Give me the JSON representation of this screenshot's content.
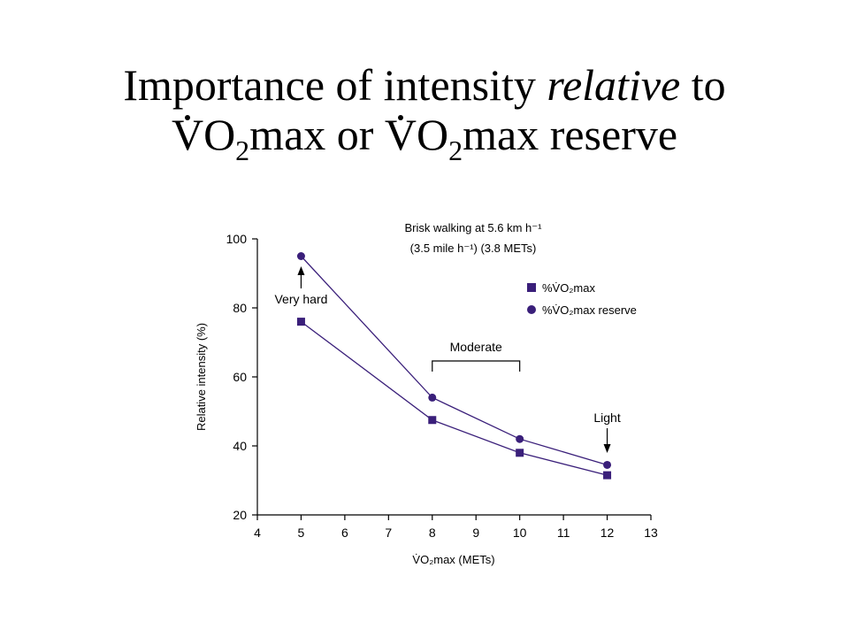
{
  "title": {
    "line1_pre": "Importance of intensity ",
    "line1_em": "relative",
    "line1_post": " to",
    "line2_v1": "V",
    "line2_o1": "O",
    "line2_sub1": "2",
    "line2_mid": "max or ",
    "line2_v2": "V",
    "line2_o2": "O",
    "line2_sub2": "2",
    "line2_end": "max reserve"
  },
  "chart_data": {
    "type": "line",
    "categories": [
      "4",
      "5",
      "6",
      "7",
      "8",
      "9",
      "10",
      "11",
      "12",
      "13"
    ],
    "series": [
      {
        "name": "%V̇O₂max",
        "marker": "square",
        "points": [
          {
            "cat": "5",
            "y": 76
          },
          {
            "cat": "8",
            "y": 47.5
          },
          {
            "cat": "10",
            "y": 38
          },
          {
            "cat": "12",
            "y": 31.5
          }
        ]
      },
      {
        "name": "%V̇O₂max reserve",
        "marker": "circle",
        "points": [
          {
            "cat": "5",
            "y": 95
          },
          {
            "cat": "8",
            "y": 54
          },
          {
            "cat": "10",
            "y": 42
          },
          {
            "cat": "12",
            "y": 34.5
          }
        ]
      }
    ],
    "ylim": [
      20,
      100
    ],
    "yticks": [
      20,
      40,
      60,
      80,
      100
    ],
    "xlabel": "V̇O₂max (METs)",
    "ylabel": "Relative intensity (%)",
    "annotation_lines": [
      "Brisk walking at 5.6 km h⁻¹",
      "(3.5 mile h⁻¹) (3.8 METs)"
    ],
    "labels": {
      "very_hard": "Very hard",
      "moderate": "Moderate",
      "light": "Light"
    },
    "legend_position": "right",
    "grid": false,
    "colors": {
      "series": "#3a1f7a",
      "axis": "#000000"
    }
  }
}
